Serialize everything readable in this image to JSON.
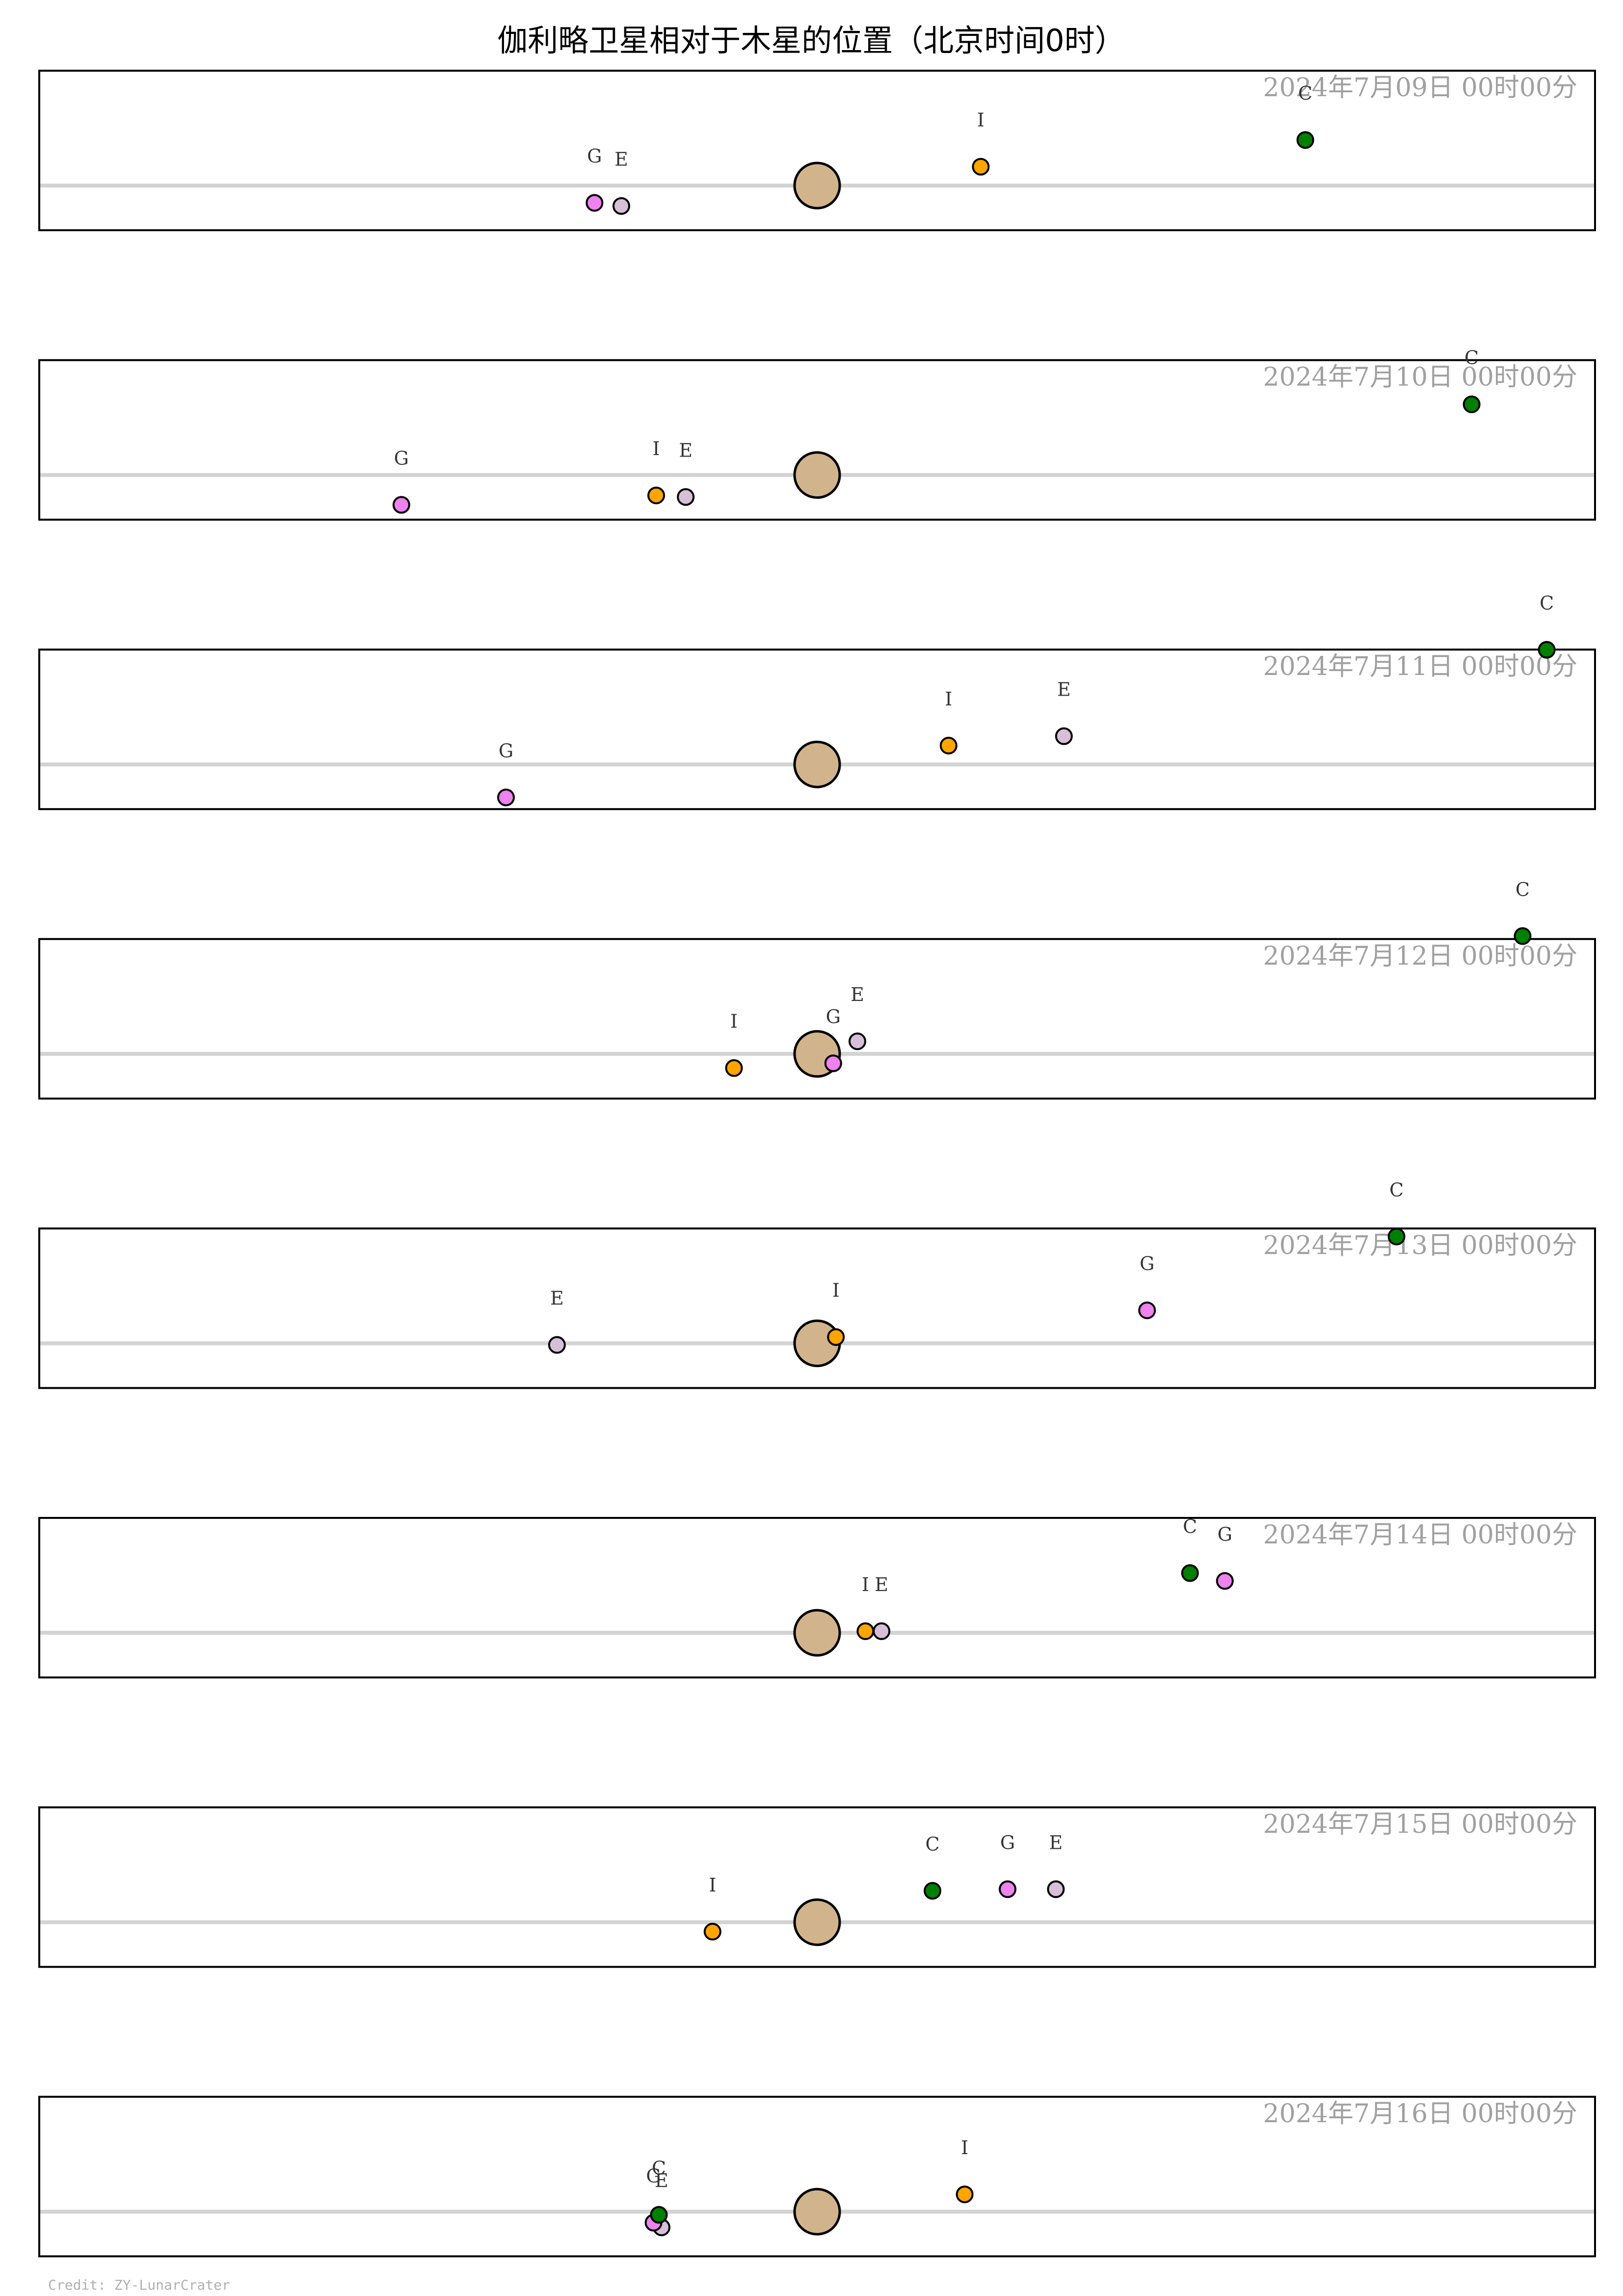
{
  "title": "伽利略卫星相对于木星的位置（北京时间0时）",
  "credit": "Credit: ZY-LunarCrater",
  "colors": {
    "jupiter": "#d2b48c",
    "I": "#ffa500",
    "E": "#d8bfd8",
    "G": "#ee82ee",
    "C": "#008000",
    "equator": "#d3d3d3",
    "date_text": "#a0a0a0",
    "label_text": "#333333"
  },
  "chart_data": {
    "type": "scatter",
    "title": "伽利略卫星相对于木星的位置（北京时间0时）",
    "xlabel": "",
    "ylabel": "",
    "x_unit": "Jupiter radii (east/west offset)",
    "xlim": [
      -29,
      29
    ],
    "ylim": [
      -3,
      3
    ],
    "grid": false,
    "legend": "none",
    "panels": [
      {
        "date": "2024年7月09日  00时00分",
        "moons": [
          {
            "name": "I",
            "x": 6.1,
            "y": 1.2
          },
          {
            "name": "E",
            "x": -7.3,
            "y": -1.3
          },
          {
            "name": "G",
            "x": -8.3,
            "y": -1.1
          },
          {
            "name": "C",
            "x": 18.2,
            "y": 2.9
          }
        ]
      },
      {
        "date": "2024年7月10日  00时00分",
        "moons": [
          {
            "name": "I",
            "x": -6.0,
            "y": -1.3
          },
          {
            "name": "E",
            "x": -4.9,
            "y": -1.4
          },
          {
            "name": "G",
            "x": -15.5,
            "y": -1.9
          },
          {
            "name": "C",
            "x": 24.4,
            "y": 4.5
          }
        ]
      },
      {
        "date": "2024年7月11日  00时00分",
        "moons": [
          {
            "name": "I",
            "x": 4.9,
            "y": 1.2
          },
          {
            "name": "E",
            "x": 9.2,
            "y": 1.8
          },
          {
            "name": "G",
            "x": -11.6,
            "y": -2.1
          },
          {
            "name": "C",
            "x": 27.2,
            "y": 7.3
          }
        ]
      },
      {
        "date": "2024年7月12日  00时00分",
        "moons": [
          {
            "name": "I",
            "x": -3.1,
            "y": -0.9
          },
          {
            "name": "E",
            "x": 1.5,
            "y": 0.8
          },
          {
            "name": "G",
            "x": 0.6,
            "y": -0.6
          },
          {
            "name": "C",
            "x": 26.3,
            "y": 7.5
          }
        ]
      },
      {
        "date": "2024年7月13日  00时00分",
        "moons": [
          {
            "name": "I",
            "x": 0.7,
            "y": 0.4
          },
          {
            "name": "E",
            "x": -9.7,
            "y": -0.1
          },
          {
            "name": "G",
            "x": 12.3,
            "y": 2.1
          },
          {
            "name": "C",
            "x": 21.6,
            "y": 6.8
          }
        ]
      },
      {
        "date": "2024年7月14日  00时00分",
        "moons": [
          {
            "name": "I",
            "x": 1.8,
            "y": 0.1
          },
          {
            "name": "E",
            "x": 2.4,
            "y": 0.1
          },
          {
            "name": "G",
            "x": 15.2,
            "y": 3.3
          },
          {
            "name": "C",
            "x": 13.9,
            "y": 3.8
          }
        ]
      },
      {
        "date": "2024年7月15日  00时00分",
        "moons": [
          {
            "name": "I",
            "x": -3.9,
            "y": -0.6
          },
          {
            "name": "E",
            "x": 8.9,
            "y": 2.1
          },
          {
            "name": "G",
            "x": 7.1,
            "y": 2.1
          },
          {
            "name": "C",
            "x": 4.3,
            "y": 2.0
          }
        ]
      },
      {
        "date": "2024年7月16日  00时00分",
        "moons": [
          {
            "name": "I",
            "x": 5.5,
            "y": 1.1
          },
          {
            "name": "E",
            "x": -5.8,
            "y": -1.0
          },
          {
            "name": "G",
            "x": -6.1,
            "y": -0.7
          },
          {
            "name": "C",
            "x": -5.9,
            "y": -0.2
          }
        ]
      }
    ]
  }
}
